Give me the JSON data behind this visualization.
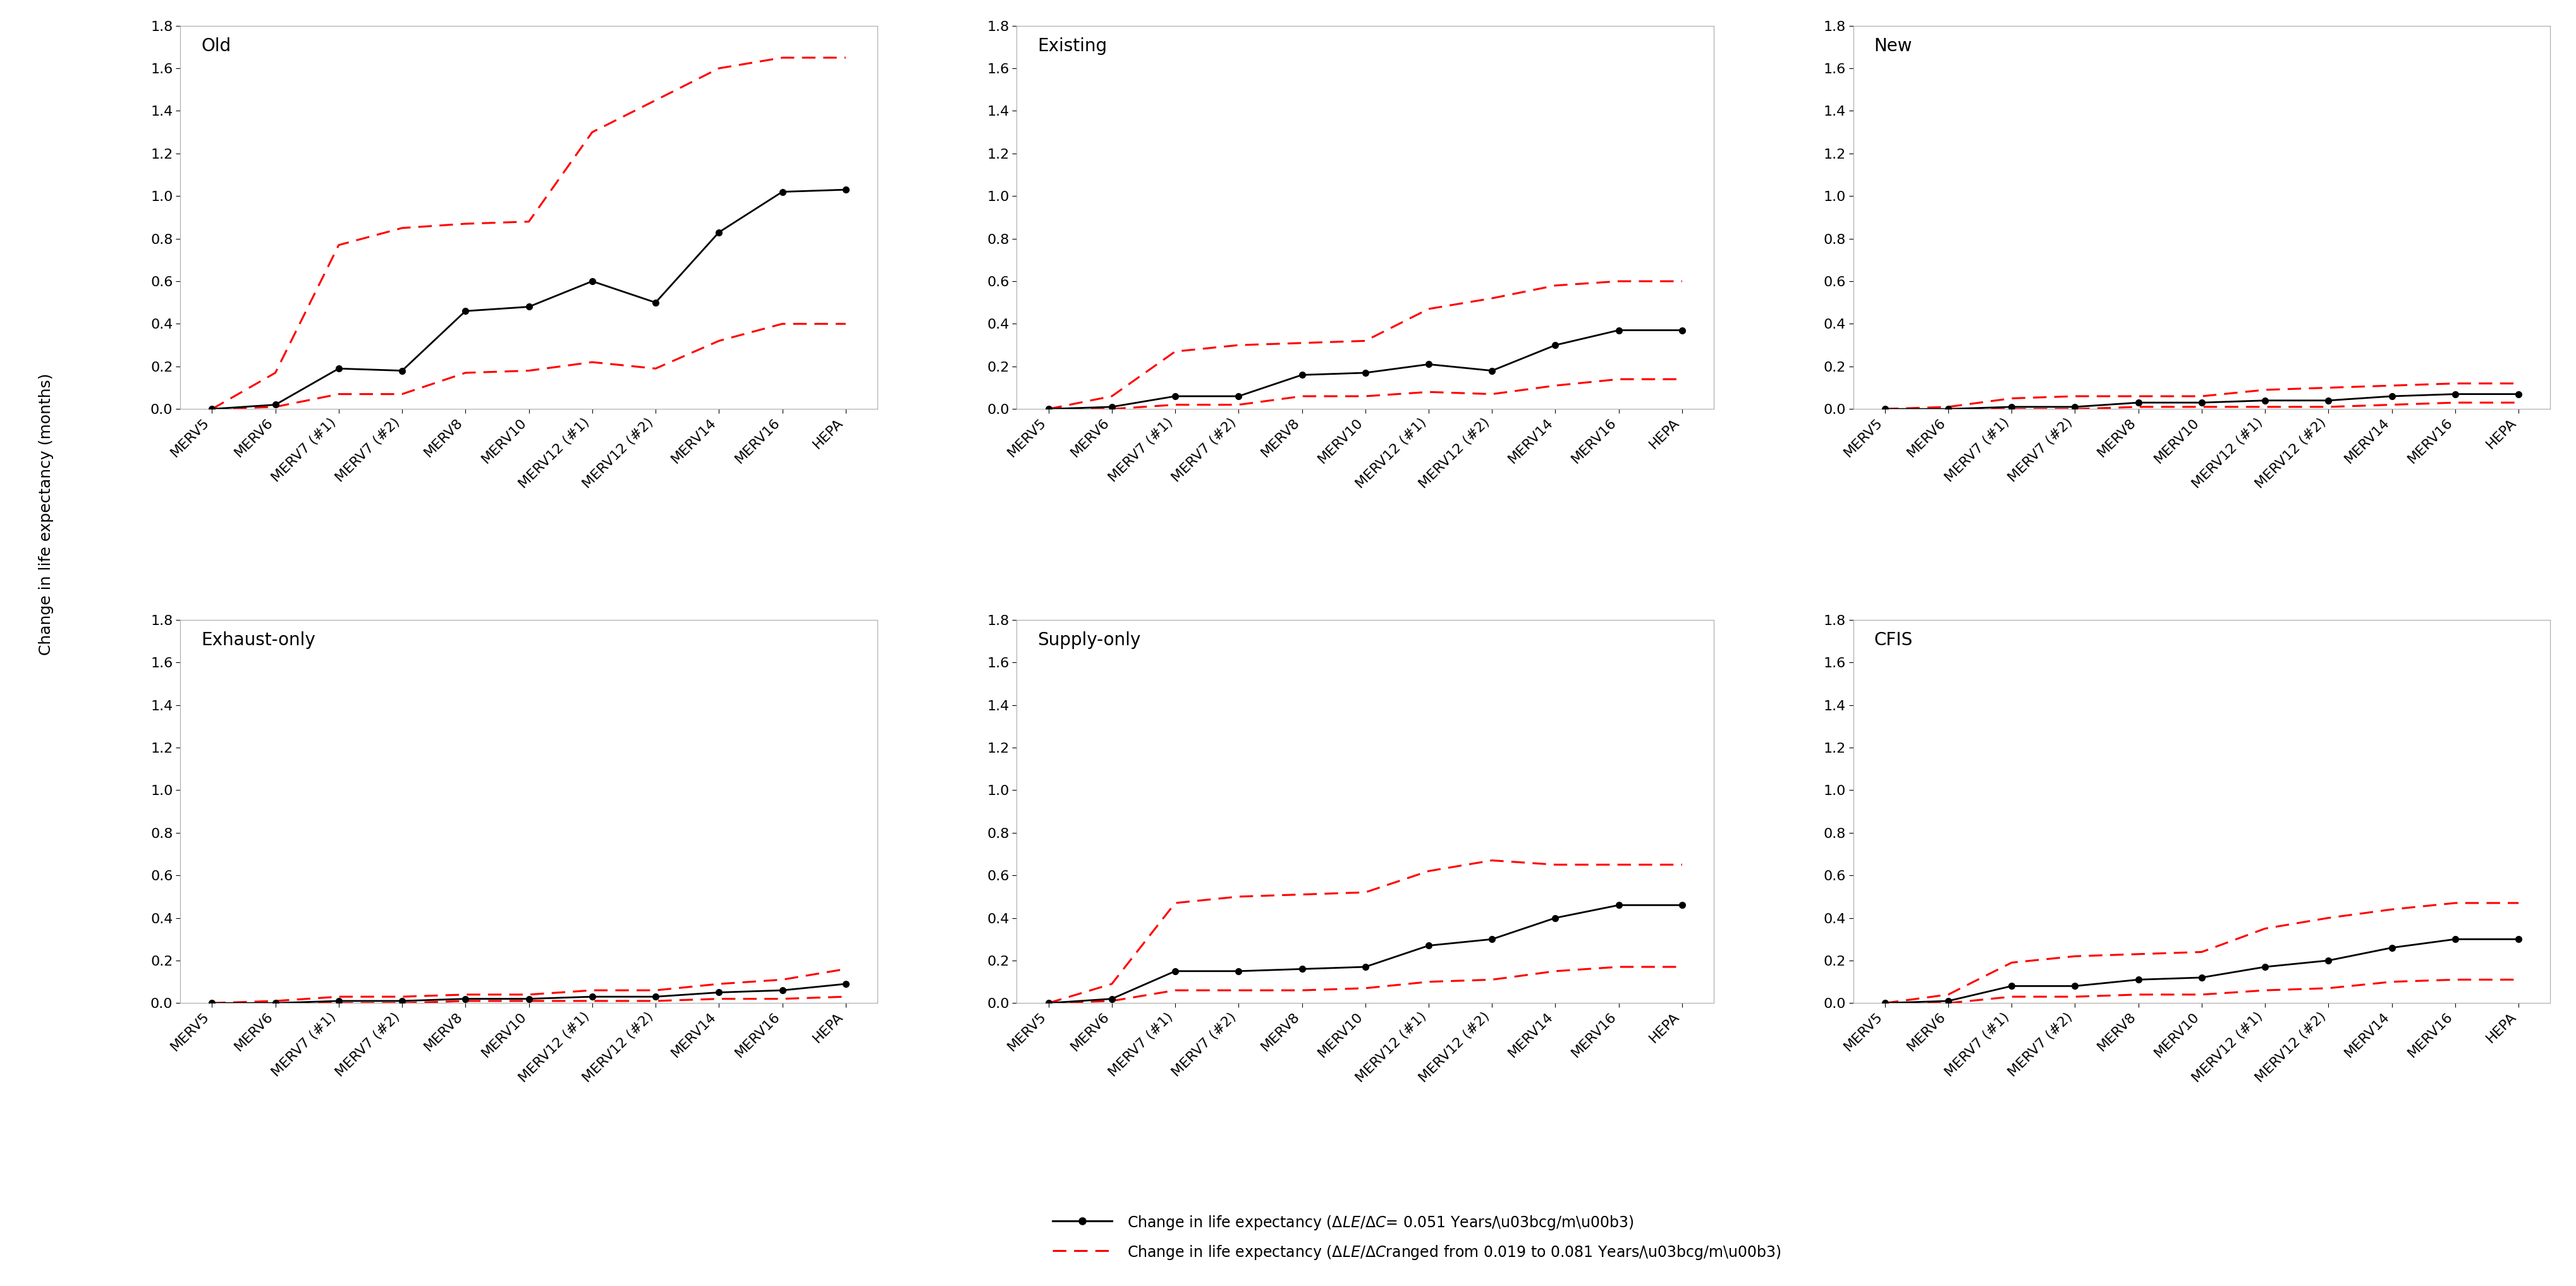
{
  "x_labels": [
    "MERV5",
    "MERV6",
    "MERV7 (#1)",
    "MERV7 (#2)",
    "MERV8",
    "MERV10",
    "MERV12 (#1)",
    "MERV12 (#2)",
    "MERV14",
    "MERV16",
    "HEPA"
  ],
  "panels": [
    {
      "title": "Old",
      "main": [
        0.0,
        0.02,
        0.19,
        0.18,
        0.46,
        0.48,
        0.6,
        0.5,
        0.83,
        1.02,
        1.03
      ],
      "upper": [
        0.0,
        0.17,
        0.77,
        0.85,
        0.87,
        0.88,
        1.3,
        1.45,
        1.6,
        1.65,
        1.65
      ],
      "lower": [
        0.0,
        0.01,
        0.07,
        0.07,
        0.17,
        0.18,
        0.22,
        0.19,
        0.32,
        0.4,
        0.4
      ]
    },
    {
      "title": "Existing",
      "main": [
        0.0,
        0.01,
        0.06,
        0.06,
        0.16,
        0.17,
        0.21,
        0.18,
        0.3,
        0.37,
        0.37
      ],
      "upper": [
        0.0,
        0.06,
        0.27,
        0.3,
        0.31,
        0.32,
        0.47,
        0.52,
        0.58,
        0.6,
        0.6
      ],
      "lower": [
        0.0,
        0.0,
        0.02,
        0.02,
        0.06,
        0.06,
        0.08,
        0.07,
        0.11,
        0.14,
        0.14
      ]
    },
    {
      "title": "New",
      "main": [
        0.0,
        0.0,
        0.01,
        0.01,
        0.03,
        0.03,
        0.04,
        0.04,
        0.06,
        0.07,
        0.07
      ],
      "upper": [
        0.0,
        0.01,
        0.05,
        0.06,
        0.06,
        0.06,
        0.09,
        0.1,
        0.11,
        0.12,
        0.12
      ],
      "lower": [
        0.0,
        0.0,
        0.0,
        0.0,
        0.01,
        0.01,
        0.01,
        0.01,
        0.02,
        0.03,
        0.03
      ]
    },
    {
      "title": "Exhaust-only",
      "main": [
        0.0,
        0.0,
        0.01,
        0.01,
        0.02,
        0.02,
        0.03,
        0.03,
        0.05,
        0.06,
        0.09
      ],
      "upper": [
        0.0,
        0.01,
        0.03,
        0.03,
        0.04,
        0.04,
        0.06,
        0.06,
        0.09,
        0.11,
        0.16
      ],
      "lower": [
        0.0,
        0.0,
        0.0,
        0.0,
        0.01,
        0.01,
        0.01,
        0.01,
        0.02,
        0.02,
        0.03
      ]
    },
    {
      "title": "Supply-only",
      "main": [
        0.0,
        0.02,
        0.15,
        0.15,
        0.16,
        0.17,
        0.27,
        0.3,
        0.4,
        0.46,
        0.46
      ],
      "upper": [
        0.0,
        0.09,
        0.47,
        0.5,
        0.51,
        0.52,
        0.62,
        0.67,
        0.65,
        0.65,
        0.65
      ],
      "lower": [
        0.0,
        0.01,
        0.06,
        0.06,
        0.06,
        0.07,
        0.1,
        0.11,
        0.15,
        0.17,
        0.17
      ]
    },
    {
      "title": "CFIS",
      "main": [
        0.0,
        0.01,
        0.08,
        0.08,
        0.11,
        0.12,
        0.17,
        0.2,
        0.26,
        0.3,
        0.3
      ],
      "upper": [
        0.0,
        0.04,
        0.19,
        0.22,
        0.23,
        0.24,
        0.35,
        0.4,
        0.44,
        0.47,
        0.47
      ],
      "lower": [
        0.0,
        0.0,
        0.03,
        0.03,
        0.04,
        0.04,
        0.06,
        0.07,
        0.1,
        0.11,
        0.11
      ]
    }
  ],
  "ylabel": "Change in life expectancy (months)",
  "main_color": "#000000",
  "range_color": "#ff0000",
  "ylim": [
    0.0,
    1.8
  ],
  "yticks": [
    0.0,
    0.2,
    0.4,
    0.6,
    0.8,
    1.0,
    1.2,
    1.4,
    1.6,
    1.8
  ],
  "tick_fontsize": 16,
  "title_fontsize": 20,
  "ylabel_fontsize": 18,
  "legend_fontsize": 17
}
